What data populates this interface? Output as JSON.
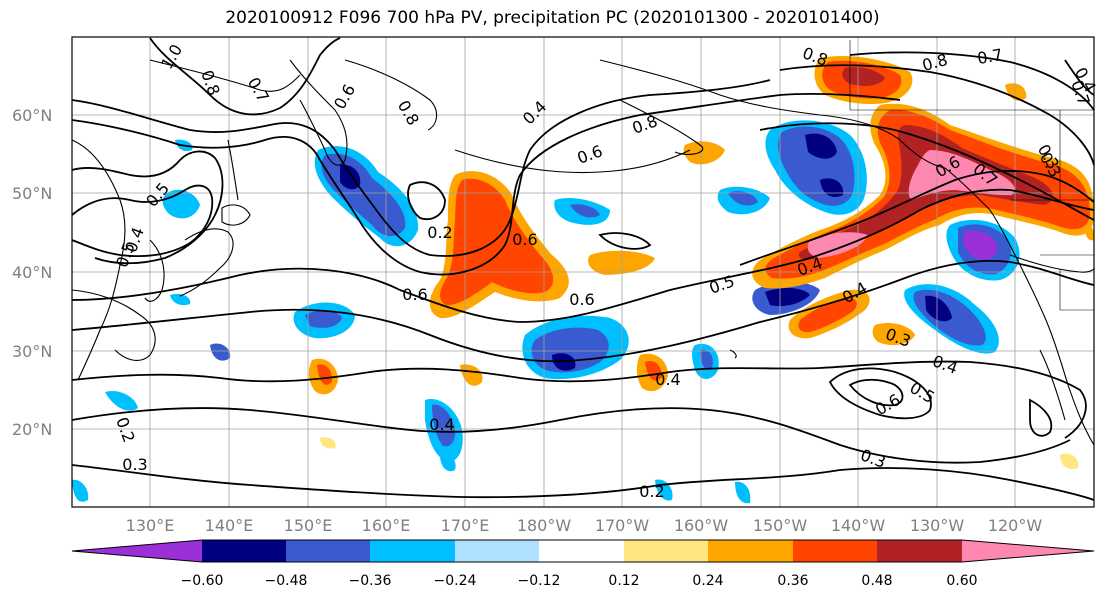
{
  "title": "2020100912 F096 700 hPa PV, precipitation PC (2020101300 - 2020101400)",
  "lat_labels": [
    "60°N",
    "50°N",
    "40°N",
    "30°N",
    "20°N"
  ],
  "lon_labels": [
    "130°E",
    "140°E",
    "150°E",
    "160°E",
    "170°E",
    "180°W",
    "170°W",
    "160°W",
    "150°W",
    "140°W",
    "130°W",
    "120°W"
  ],
  "colorbar": {
    "ticks": [
      "−0.60",
      "−0.48",
      "−0.36",
      "−0.24",
      "−0.12",
      "0.12",
      "0.24",
      "0.36",
      "0.48",
      "0.60"
    ],
    "colors": [
      "#9b30d9",
      "#000080",
      "#3a5bd0",
      "#00bfff",
      "#b0e0ff",
      "#ffffff",
      "#ffe680",
      "#ffa500",
      "#ff4500",
      "#b22222",
      "#ff88b0"
    ]
  },
  "contour_labels": [
    {
      "text": "1.0"
    },
    {
      "text": "0.8"
    },
    {
      "text": "0.7"
    },
    {
      "text": "0.6"
    },
    {
      "text": "0.8"
    },
    {
      "text": "0.4"
    },
    {
      "text": "0.6"
    },
    {
      "text": "0.8"
    },
    {
      "text": "0.8"
    },
    {
      "text": "0.8"
    },
    {
      "text": "0.7"
    },
    {
      "text": "0.7"
    },
    {
      "text": "0.5"
    },
    {
      "text": "0.4"
    },
    {
      "text": "0.5"
    },
    {
      "text": "0.2"
    },
    {
      "text": "0.6"
    },
    {
      "text": "0.6"
    },
    {
      "text": "0.6"
    },
    {
      "text": "0.5"
    },
    {
      "text": "0.4"
    },
    {
      "text": "0.4"
    },
    {
      "text": "0.3"
    },
    {
      "text": "0.4"
    },
    {
      "text": "0.5"
    },
    {
      "text": "0.6"
    },
    {
      "text": "0.4"
    },
    {
      "text": "0.4"
    },
    {
      "text": "0.3"
    },
    {
      "text": "0.2"
    },
    {
      "text": "0.2"
    },
    {
      "text": "0.3"
    },
    {
      "text": "0.3"
    },
    {
      "text": "0.6"
    },
    {
      "text": "0.7"
    },
    {
      "text": "0.4"
    },
    {
      "text": "0.3"
    }
  ]
}
